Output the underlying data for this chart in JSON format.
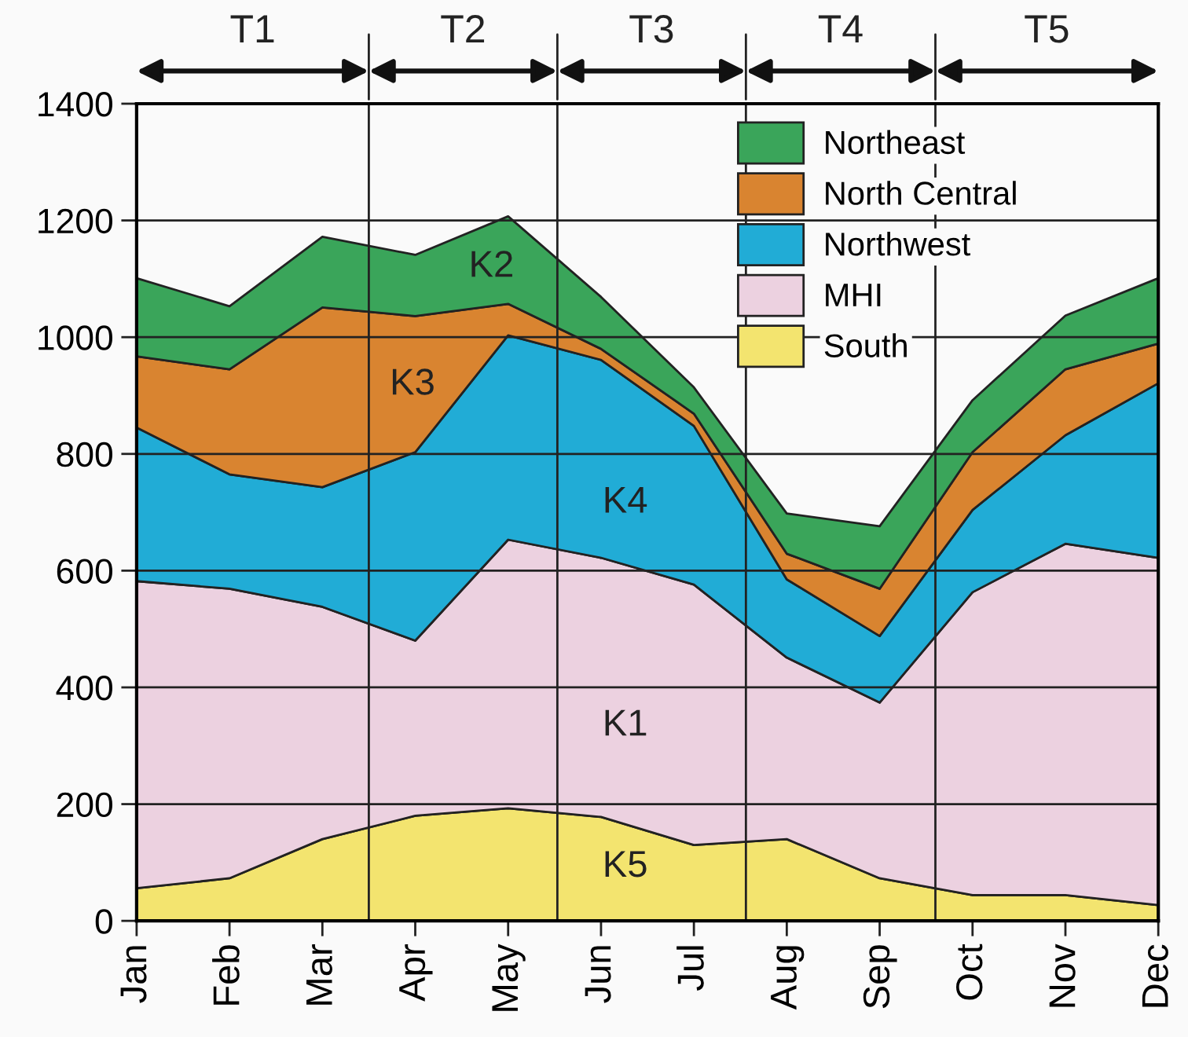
{
  "chart_data": {
    "type": "area",
    "stacked": true,
    "categories": [
      "Jan",
      "Feb",
      "Mar",
      "Apr",
      "May",
      "Jun",
      "Jul",
      "Aug",
      "Sep",
      "Oct",
      "Nov",
      "Dec"
    ],
    "ylim": [
      0,
      1400
    ],
    "yticks": [
      0,
      200,
      400,
      600,
      800,
      1000,
      1200,
      1400
    ],
    "grid": "y",
    "legend": "top right",
    "series": [
      {
        "name": "South",
        "color": "#f3e46f",
        "values": [
          56,
          73,
          140,
          180,
          193,
          178,
          130,
          140,
          73,
          44,
          44,
          27
        ]
      },
      {
        "name": "MHI",
        "color": "#ecd1e0",
        "values": [
          526,
          496,
          398,
          300,
          460,
          444,
          446,
          311,
          301,
          519,
          602,
          595
        ]
      },
      {
        "name": "Northwest",
        "color": "#21acd6",
        "values": [
          263,
          196,
          205,
          323,
          350,
          339,
          272,
          134,
          114,
          141,
          186,
          299
        ]
      },
      {
        "name": "North Central",
        "color": "#d98430",
        "values": [
          122,
          180,
          308,
          233,
          54,
          19,
          21,
          44,
          81,
          99,
          113,
          68
        ]
      },
      {
        "name": "Northeast",
        "color": "#3aa55a",
        "values": [
          134,
          108,
          121,
          105,
          150,
          89,
          45,
          69,
          107,
          89,
          92,
          112
        ]
      }
    ],
    "annotations": [
      "T1",
      "T2",
      "T3",
      "T4",
      "T5",
      "K1",
      "K2",
      "K3",
      "K4",
      "K5"
    ]
  }
}
